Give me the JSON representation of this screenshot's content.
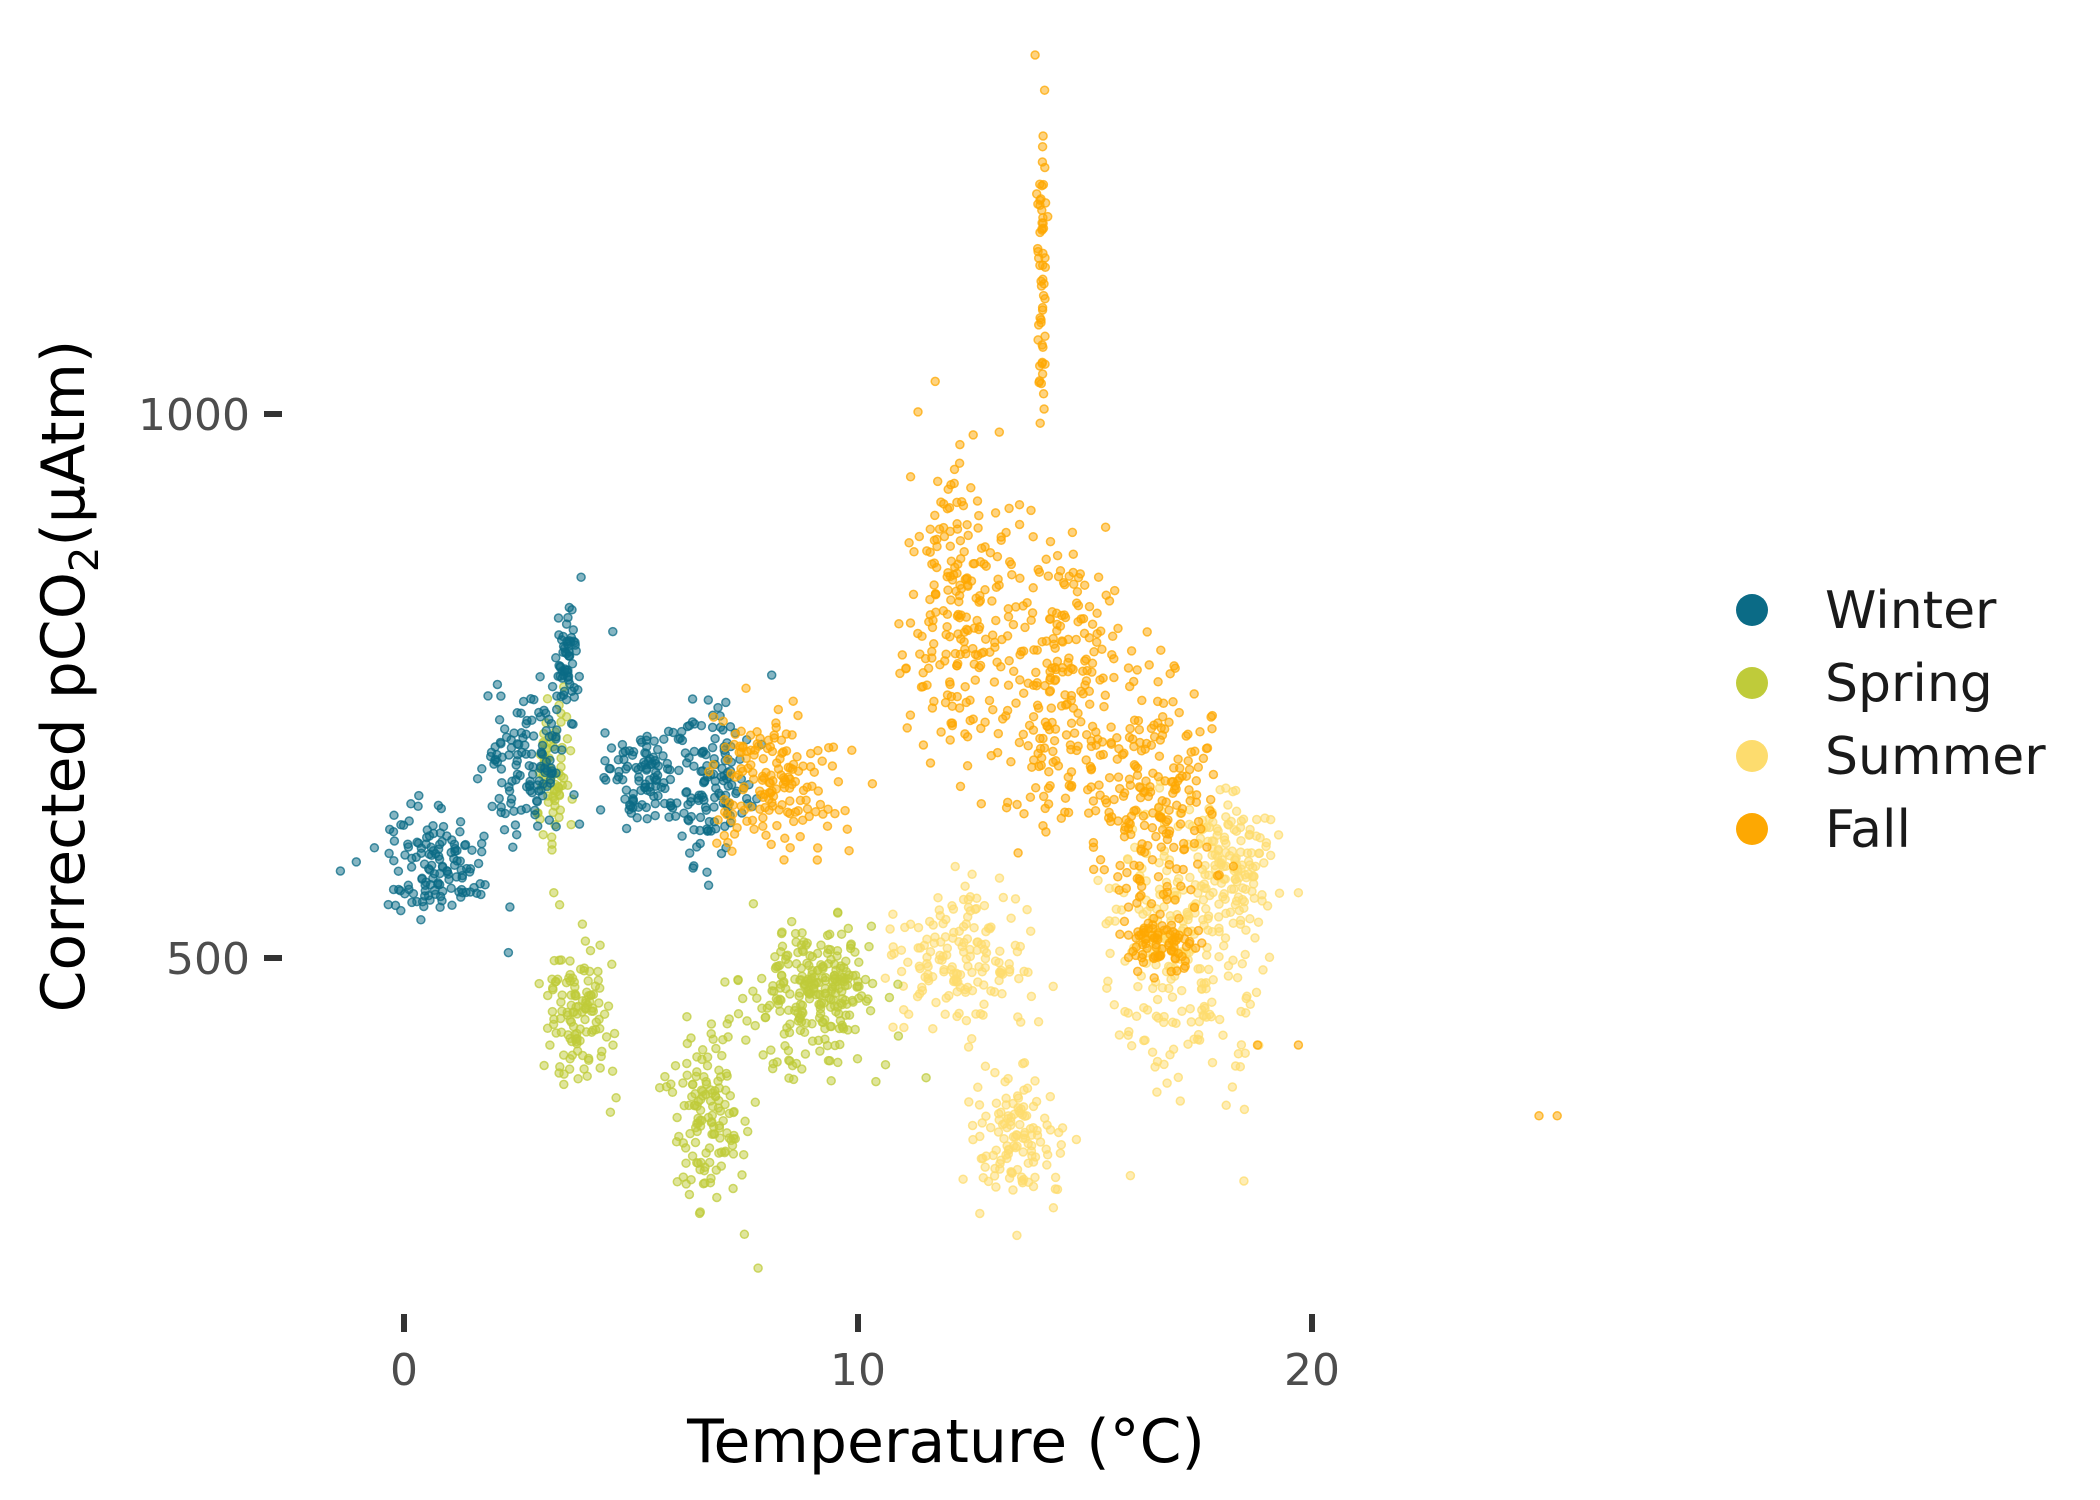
{
  "chart_data": {
    "type": "scatter",
    "title": "",
    "xlabel": "Temperature (°C)",
    "ylabel_main": "Corrected pCO",
    "ylabel_sub": "2",
    "ylabel_tail": "(µAtm)",
    "xlim": [
      -1.5,
      26
    ],
    "ylim": [
      220,
      1330
    ],
    "x_ticks": [
      0,
      10,
      20
    ],
    "x_tick_labels": [
      "0",
      "10",
      "20"
    ],
    "y_ticks": [
      500,
      1000
    ],
    "y_tick_labels": [
      "500",
      "1000"
    ],
    "grid": false,
    "legend_placement": "right",
    "colors": {
      "Winter": "#0b6b86",
      "Spring": "#bfcb3a",
      "Summer": "#fddc6e",
      "Fall": "#fda802"
    },
    "point_opacity": 0.5,
    "series": [
      {
        "name": "Winter",
        "clusters": [
          {
            "x": [
              -1.2,
              2.5
            ],
            "y": [
              505,
              660
            ]
          },
          {
            "x": [
              1.5,
              4.0
            ],
            "y": [
              580,
              780
            ]
          },
          {
            "x": [
              3.2,
              4.0
            ],
            "y": [
              700,
              840
            ]
          },
          {
            "x": [
              4.0,
              6.5
            ],
            "y": [
              600,
              730
            ]
          },
          {
            "x": [
              5.5,
              8.2
            ],
            "y": [
              560,
              760
            ]
          }
        ],
        "points": [
          [
            -1.4,
            580
          ],
          [
            3.9,
            850
          ],
          [
            8.1,
            760
          ],
          [
            3.7,
            820
          ],
          [
            4.6,
            800
          ],
          [
            2.3,
            505
          ]
        ]
      },
      {
        "name": "Spring",
        "clusters": [
          {
            "x": [
              2.8,
              3.8
            ],
            "y": [
              580,
              760
            ]
          },
          {
            "x": [
              2.7,
              5.0
            ],
            "y": [
              340,
              560
            ]
          },
          {
            "x": [
              5.5,
              8.0
            ],
            "y": [
              230,
              470
            ]
          },
          {
            "x": [
              6.5,
              11.5
            ],
            "y": [
              360,
              560
            ]
          },
          {
            "x": [
              8.0,
              10.5
            ],
            "y": [
              430,
              540
            ]
          }
        ],
        "points": [
          [
            7.8,
            215
          ],
          [
            3.3,
            560
          ],
          [
            11.5,
            390
          ]
        ]
      },
      {
        "name": "Summer",
        "clusters": [
          {
            "x": [
              10.0,
              14.5
            ],
            "y": [
              400,
              600
            ]
          },
          {
            "x": [
              12.0,
              15.0
            ],
            "y": [
              250,
              420
            ]
          },
          {
            "x": [
              14.5,
              19.8
            ],
            "y": [
              310,
              700
            ]
          },
          {
            "x": [
              17.0,
              19.5
            ],
            "y": [
              500,
              680
            ]
          }
        ],
        "points": [
          [
            13.5,
            245
          ],
          [
            18.5,
            295
          ],
          [
            19.7,
            560
          ],
          [
            16.0,
            300
          ]
        ]
      },
      {
        "name": "Fall",
        "clusters": [
          {
            "x": [
              6.0,
              10.5
            ],
            "y": [
              560,
              760
            ]
          },
          {
            "x": [
              10.5,
              14.0
            ],
            "y": [
              600,
              1030
            ]
          },
          {
            "x": [
              13.9,
              14.2
            ],
            "y": [
              950,
              1320
            ]
          },
          {
            "x": [
              12.5,
              16.5
            ],
            "y": [
              560,
              950
            ]
          },
          {
            "x": [
              14.5,
              18.5
            ],
            "y": [
              480,
              830
            ]
          },
          {
            "x": [
              15.5,
              18.0
            ],
            "y": [
              470,
              560
            ]
          }
        ],
        "points": [
          [
            25.0,
            355
          ],
          [
            25.4,
            355
          ],
          [
            13.9,
            1330
          ],
          [
            18.8,
            420
          ],
          [
            19.7,
            420
          ],
          [
            11.7,
            1030
          ]
        ]
      }
    ]
  }
}
